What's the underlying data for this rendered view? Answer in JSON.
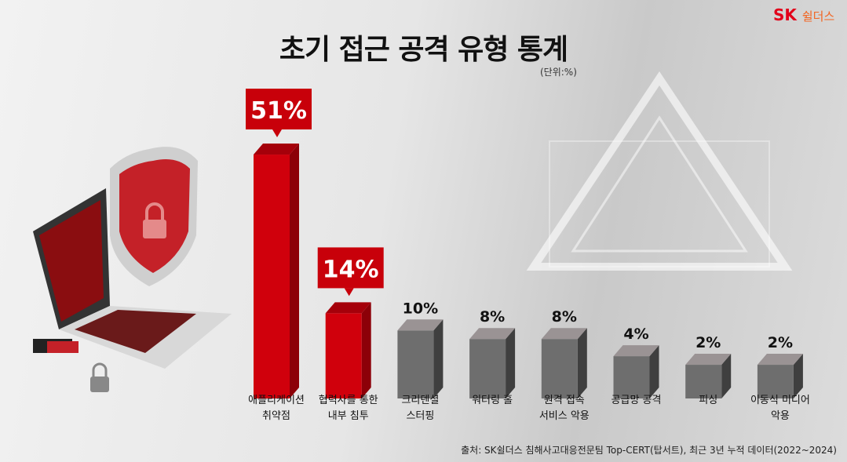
{
  "title": "초기 접근 공격 유형 통계",
  "unit": "(단위:%)",
  "logo": {
    "sk": "SK",
    "name": "쉴더스"
  },
  "source": "출처: SK쉴더스 침해사고대응전문팀 Top-CERT(탑서트), 최근 3년 누적 데이터(2022~2024)",
  "colors": {
    "highlight": "#c8000a",
    "normal": "#6b6b6b"
  },
  "chart_data": {
    "type": "bar",
    "categories": [
      [
        "애플리케이션",
        "취약점"
      ],
      [
        "협력사를 통한",
        "내부 침투"
      ],
      [
        "크리덴셜",
        "스터핑"
      ],
      [
        "워터링 홀"
      ],
      [
        "원격 접속",
        "서비스 악용"
      ],
      [
        "공급망 공격"
      ],
      [
        "피싱"
      ],
      [
        "이동식 미디어",
        "악용"
      ]
    ],
    "values": [
      51,
      14,
      10,
      8,
      8,
      4,
      2,
      2
    ],
    "labels": [
      "51%",
      "14%",
      "10%",
      "8%",
      "8%",
      "4%",
      "2%",
      "2%"
    ],
    "highlighted": [
      true,
      true,
      false,
      false,
      false,
      false,
      false,
      false
    ],
    "title": "초기 접근 공격 유형 통계",
    "unit": "%"
  }
}
